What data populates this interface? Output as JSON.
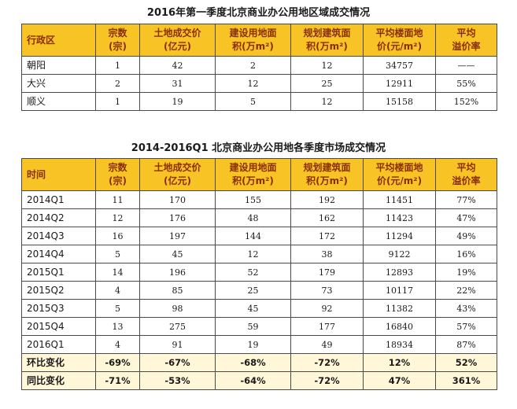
{
  "table1": {
    "title": "2016年第一季度北京商业办公用地区域成交情况",
    "headers": [
      [
        "行政区"
      ],
      [
        "宗数",
        "(宗)"
      ],
      [
        "土地成交价",
        "(亿元)"
      ],
      [
        "建设用地面",
        "积(万m²)"
      ],
      [
        "规划建筑面",
        "积(万m²)"
      ],
      [
        "平均楼面地",
        "价(元/m²)"
      ],
      [
        "平均",
        "溢价率"
      ]
    ],
    "rows": [
      [
        "朝阳",
        "1",
        "42",
        "2",
        "12",
        "34757",
        "——"
      ],
      [
        "大兴",
        "2",
        "31",
        "12",
        "25",
        "12911",
        "55%"
      ],
      [
        "顺义",
        "1",
        "19",
        "5",
        "12",
        "15158",
        "152%"
      ]
    ]
  },
  "table2": {
    "title": "2014-2016Q1 北京商业办公用地各季度市场成交情况",
    "headers": [
      [
        "时间"
      ],
      [
        "宗数",
        "(宗)"
      ],
      [
        "土地成交价",
        "(亿元)"
      ],
      [
        "建设用地面",
        "积(万m²)"
      ],
      [
        "规划建筑面",
        "积(万m²)"
      ],
      [
        "平均楼面地",
        "价(元/m²)"
      ],
      [
        "平均",
        "溢价率"
      ]
    ],
    "rows": [
      [
        "2014Q1",
        "11",
        "170",
        "155",
        "192",
        "11451",
        "77%"
      ],
      [
        "2014Q2",
        "12",
        "176",
        "48",
        "162",
        "11423",
        "47%"
      ],
      [
        "2014Q3",
        "16",
        "197",
        "144",
        "172",
        "11294",
        "49%"
      ],
      [
        "2014Q4",
        "5",
        "45",
        "12",
        "38",
        "9122",
        "16%"
      ],
      [
        "2015Q1",
        "14",
        "196",
        "52",
        "179",
        "12893",
        "19%"
      ],
      [
        "2015Q2",
        "4",
        "85",
        "25",
        "73",
        "10117",
        "22%"
      ],
      [
        "2015Q3",
        "5",
        "98",
        "45",
        "92",
        "11382",
        "43%"
      ],
      [
        "2015Q4",
        "13",
        "275",
        "59",
        "177",
        "16840",
        "57%"
      ],
      [
        "2016Q1",
        "4",
        "91",
        "19",
        "49",
        "18934",
        "87%"
      ]
    ],
    "summary": [
      [
        "环比变化",
        "-69%",
        "-67%",
        "-68%",
        "-72%",
        "12%",
        "52%"
      ],
      [
        "同比变化",
        "-71%",
        "-53%",
        "-64%",
        "-72%",
        "47%",
        "361%"
      ]
    ]
  }
}
